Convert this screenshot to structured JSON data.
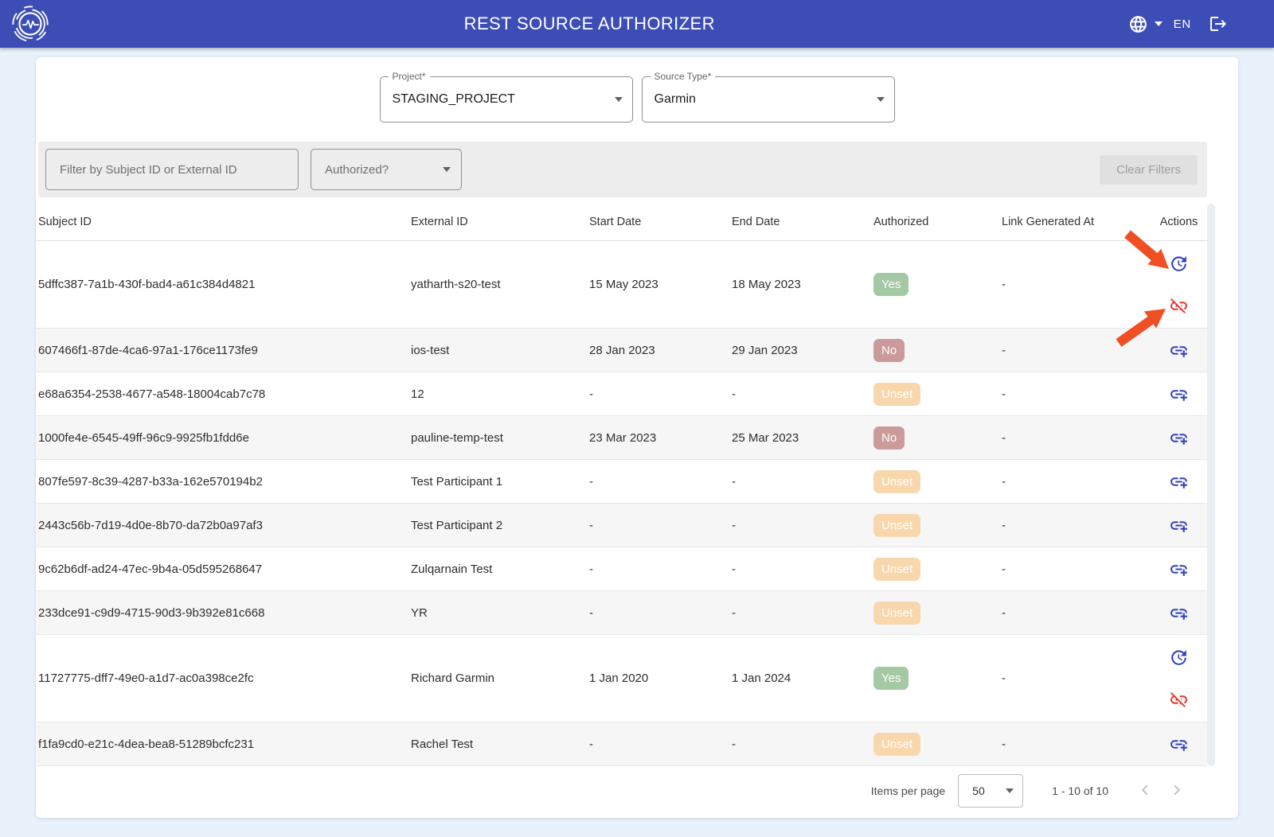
{
  "header": {
    "title": "REST SOURCE AUTHORIZER",
    "language": "EN"
  },
  "project_field": {
    "label": "Project*",
    "value": "STAGING_PROJECT"
  },
  "source_type_field": {
    "label": "Source Type*",
    "value": "Garmin"
  },
  "filter_bar": {
    "filter_placeholder": "Filter by Subject ID or External ID",
    "authorized_placeholder": "Authorized?",
    "clear_filters_label": "Clear Filters"
  },
  "table": {
    "columns": [
      "Subject ID",
      "External ID",
      "Start Date",
      "End Date",
      "Authorized",
      "Link Generated At",
      "Actions"
    ],
    "rows": [
      {
        "subject_id": "5dffc387-7a1b-430f-bad4-a61c384d4821",
        "external_id": "yatharth-s20-test",
        "start_date": "15 May 2023",
        "end_date": "18 May 2023",
        "authorized": "Yes",
        "link_generated_at": "-",
        "actions": [
          "update",
          "link-off"
        ]
      },
      {
        "subject_id": "607466f1-87de-4ca6-97a1-176ce1173fe9",
        "external_id": "ios-test",
        "start_date": "28 Jan 2023",
        "end_date": "29 Jan 2023",
        "authorized": "No",
        "link_generated_at": "-",
        "actions": [
          "add-link"
        ]
      },
      {
        "subject_id": "e68a6354-2538-4677-a548-18004cab7c78",
        "external_id": "12",
        "start_date": "-",
        "end_date": "-",
        "authorized": "Unset",
        "link_generated_at": "-",
        "actions": [
          "add-link"
        ]
      },
      {
        "subject_id": "1000fe4e-6545-49ff-96c9-9925fb1fdd6e",
        "external_id": "pauline-temp-test",
        "start_date": "23 Mar 2023",
        "end_date": "25 Mar 2023",
        "authorized": "No",
        "link_generated_at": "-",
        "actions": [
          "add-link"
        ]
      },
      {
        "subject_id": "807fe597-8c39-4287-b33a-162e570194b2",
        "external_id": "Test Participant 1",
        "start_date": "-",
        "end_date": "-",
        "authorized": "Unset",
        "link_generated_at": "-",
        "actions": [
          "add-link"
        ]
      },
      {
        "subject_id": "2443c56b-7d19-4d0e-8b70-da72b0a97af3",
        "external_id": "Test Participant 2",
        "start_date": "-",
        "end_date": "-",
        "authorized": "Unset",
        "link_generated_at": "-",
        "actions": [
          "add-link"
        ]
      },
      {
        "subject_id": "9c62b6df-ad24-47ec-9b4a-05d595268647",
        "external_id": "Zulqarnain Test",
        "start_date": "-",
        "end_date": "-",
        "authorized": "Unset",
        "link_generated_at": "-",
        "actions": [
          "add-link"
        ]
      },
      {
        "subject_id": "233dce91-c9d9-4715-90d3-9b392e81c668",
        "external_id": "YR",
        "start_date": "-",
        "end_date": "-",
        "authorized": "Unset",
        "link_generated_at": "-",
        "actions": [
          "add-link"
        ]
      },
      {
        "subject_id": "11727775-dff7-49e0-a1d7-ac0a398ce2fc",
        "external_id": "Richard Garmin",
        "start_date": "1 Jan 2020",
        "end_date": "1 Jan 2024",
        "authorized": "Yes",
        "link_generated_at": "-",
        "actions": [
          "update",
          "link-off"
        ]
      },
      {
        "subject_id": "f1fa9cd0-e21c-4dea-bea8-51289bcfc231",
        "external_id": "Rachel Test",
        "start_date": "-",
        "end_date": "-",
        "authorized": "Unset",
        "link_generated_at": "-",
        "actions": [
          "add-link"
        ]
      }
    ]
  },
  "paginator": {
    "items_per_page_label": "Items per page",
    "page_size": "50",
    "range_label": "1 - 10 of 10"
  },
  "annotations": {
    "arrow_targets": [
      "update-action",
      "link-off-action"
    ],
    "arrow_color": "#F04F23"
  },
  "colors": {
    "header_bg": "#3D4DB6",
    "page_bg": "#E9F2FB",
    "filter_bar_bg": "#EDEDED",
    "badge_yes_bg": "#A5C9A4",
    "badge_no_bg": "#CB9A9A",
    "badge_unset_bg": "#F9D7AC",
    "icon_blue": "#3040C0",
    "icon_red": "#E4352B",
    "arrow": "#F04F23"
  }
}
